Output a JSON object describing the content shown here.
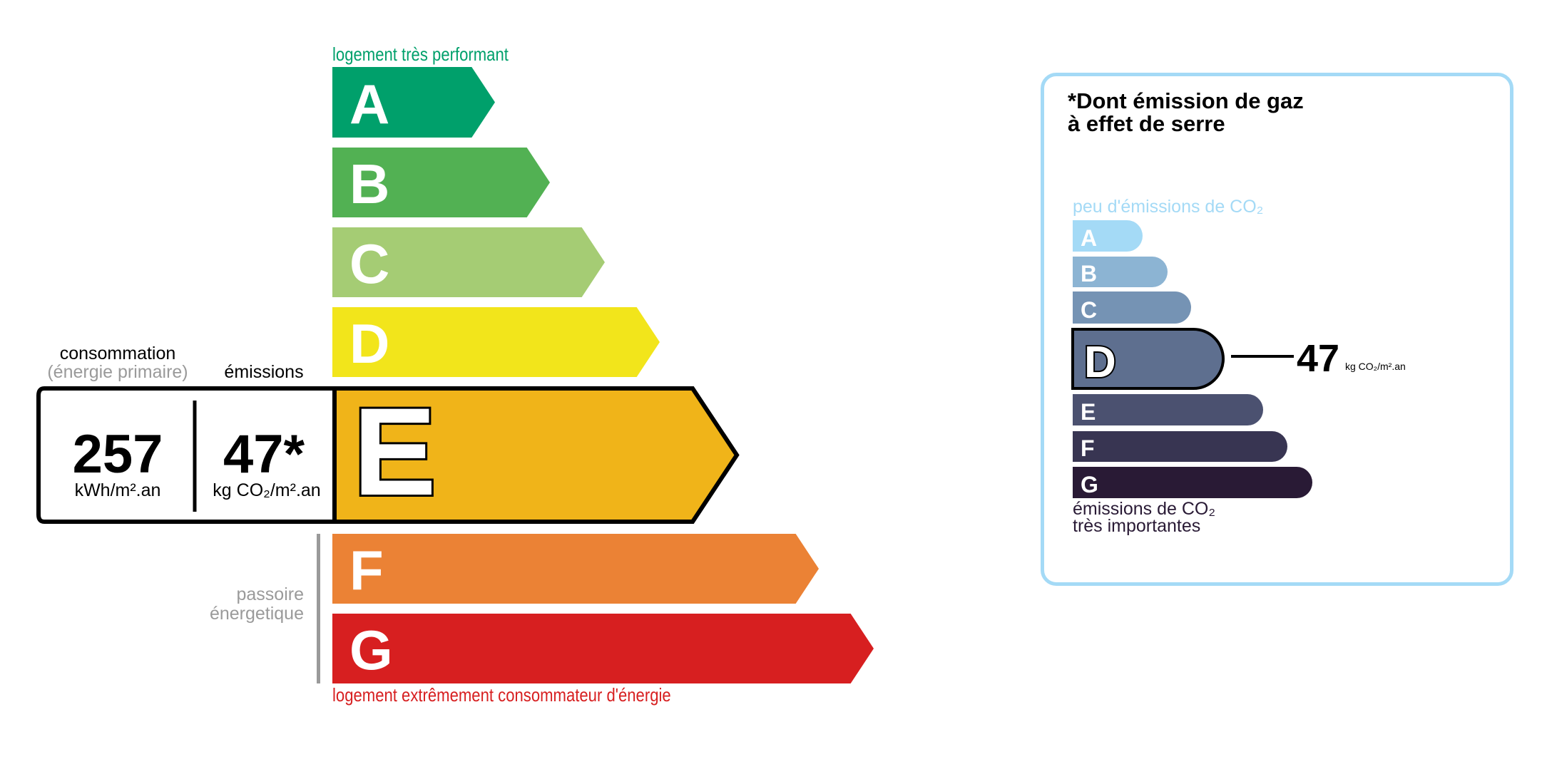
{
  "energy": {
    "top_label": "logement très performant",
    "bottom_label": "logement extrêmement consommateur d'énergie",
    "passoire_line1": "passoire",
    "passoire_line2": "énergetique",
    "consumption_label": "consommation",
    "consumption_sub": "(énergie primaire)",
    "emissions_label": "émissions",
    "consumption_value": "257",
    "consumption_unit": "kWh/m².an",
    "emissions_value": "47*",
    "emissions_unit": "kg CO₂/m².an",
    "current_class": "E",
    "classes": [
      {
        "letter": "A",
        "color": "#00a06b"
      },
      {
        "letter": "B",
        "color": "#52b153"
      },
      {
        "letter": "C",
        "color": "#a5cc74"
      },
      {
        "letter": "D",
        "color": "#f2e51b"
      },
      {
        "letter": "E",
        "color": "#f0b419"
      },
      {
        "letter": "F",
        "color": "#eb8235"
      },
      {
        "letter": "G",
        "color": "#d71f20"
      }
    ],
    "top_label_color": "#00a06b",
    "bottom_label_color": "#d71f20"
  },
  "ges": {
    "title_line1": "*Dont émission de gaz",
    "title_line2": "à effet de serre",
    "top_label": "peu d'émissions de CO₂",
    "bottom_label_line1": "émissions de CO₂",
    "bottom_label_line2": "très importantes",
    "value": "47",
    "unit": "kg CO₂/m².an",
    "current_class": "D",
    "border_color": "#a4daf6",
    "classes": [
      {
        "letter": "A",
        "color": "#a4daf6"
      },
      {
        "letter": "B",
        "color": "#8cb4d3"
      },
      {
        "letter": "C",
        "color": "#7593b4"
      },
      {
        "letter": "D",
        "color": "#5e6f8f"
      },
      {
        "letter": "E",
        "color": "#4b5170"
      },
      {
        "letter": "F",
        "color": "#383552"
      },
      {
        "letter": "G",
        "color": "#291a35"
      }
    ]
  }
}
